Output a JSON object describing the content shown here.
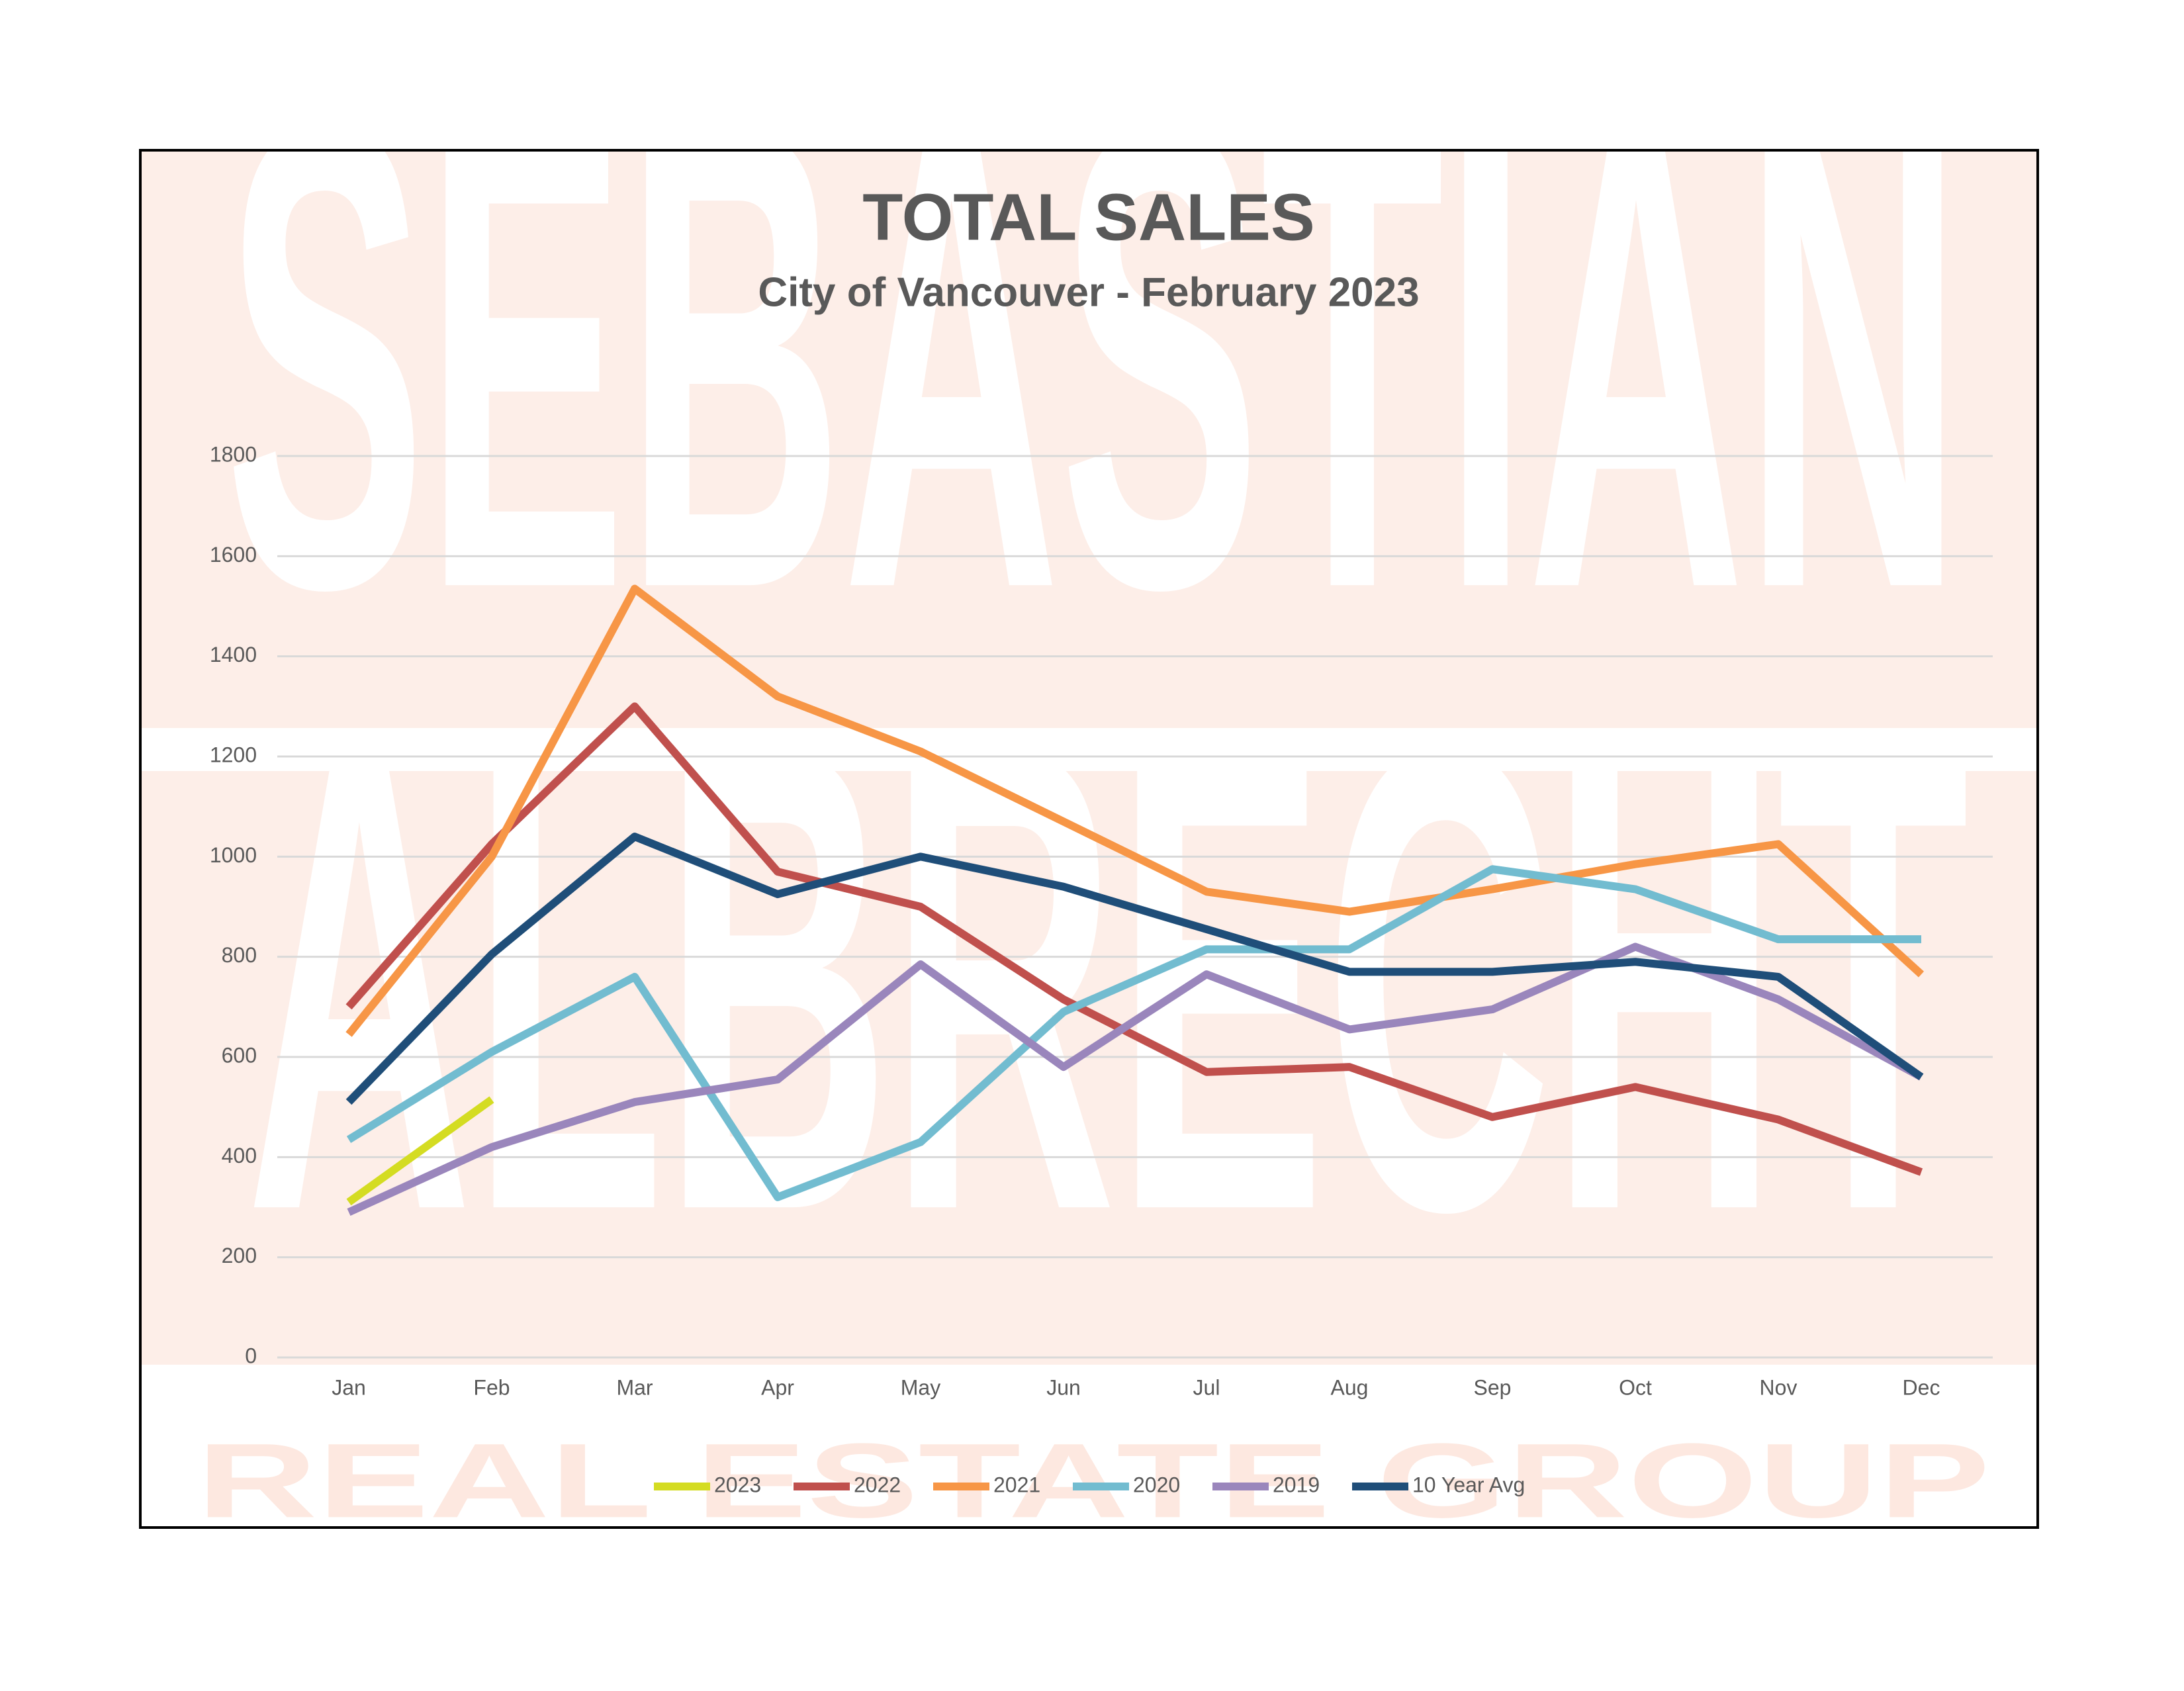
{
  "watermark": [
    "SEBASTIAN",
    "ALBRECHT",
    "REAL ESTATE GROUP"
  ],
  "chart_data": {
    "type": "line",
    "title": "TOTAL SALES",
    "subtitle": "City of Vancouver - February 2023",
    "categories": [
      "Jan",
      "Feb",
      "Mar",
      "Apr",
      "May",
      "Jun",
      "Jul",
      "Aug",
      "Sep",
      "Oct",
      "Nov",
      "Dec"
    ],
    "series": [
      {
        "name": "2023",
        "color": "#d4dc22",
        "values": [
          310,
          515,
          null,
          null,
          null,
          null,
          null,
          null,
          null,
          null,
          null,
          null
        ]
      },
      {
        "name": "2022",
        "color": "#c0504d",
        "values": [
          700,
          1025,
          1300,
          970,
          900,
          715,
          570,
          580,
          480,
          540,
          475,
          370
        ]
      },
      {
        "name": "2021",
        "color": "#f79646",
        "values": [
          645,
          1000,
          1535,
          1320,
          1210,
          1070,
          930,
          890,
          935,
          985,
          1025,
          765
        ]
      },
      {
        "name": "2020",
        "color": "#72bcd0",
        "values": [
          435,
          610,
          760,
          320,
          430,
          690,
          815,
          815,
          975,
          935,
          835,
          835
        ]
      },
      {
        "name": "2019",
        "color": "#9a86bc",
        "values": [
          290,
          420,
          510,
          555,
          785,
          580,
          765,
          655,
          695,
          820,
          715,
          560
        ]
      },
      {
        "name": "10 Year Avg",
        "color": "#1f4e79",
        "values": [
          510,
          805,
          1040,
          925,
          1000,
          940,
          855,
          770,
          770,
          790,
          760,
          560
        ]
      }
    ],
    "ylim": [
      0,
      1800
    ],
    "yticks": [
      0,
      200,
      400,
      600,
      800,
      1000,
      1200,
      1400,
      1600,
      1800
    ],
    "grid": true,
    "legend": "bottom"
  }
}
